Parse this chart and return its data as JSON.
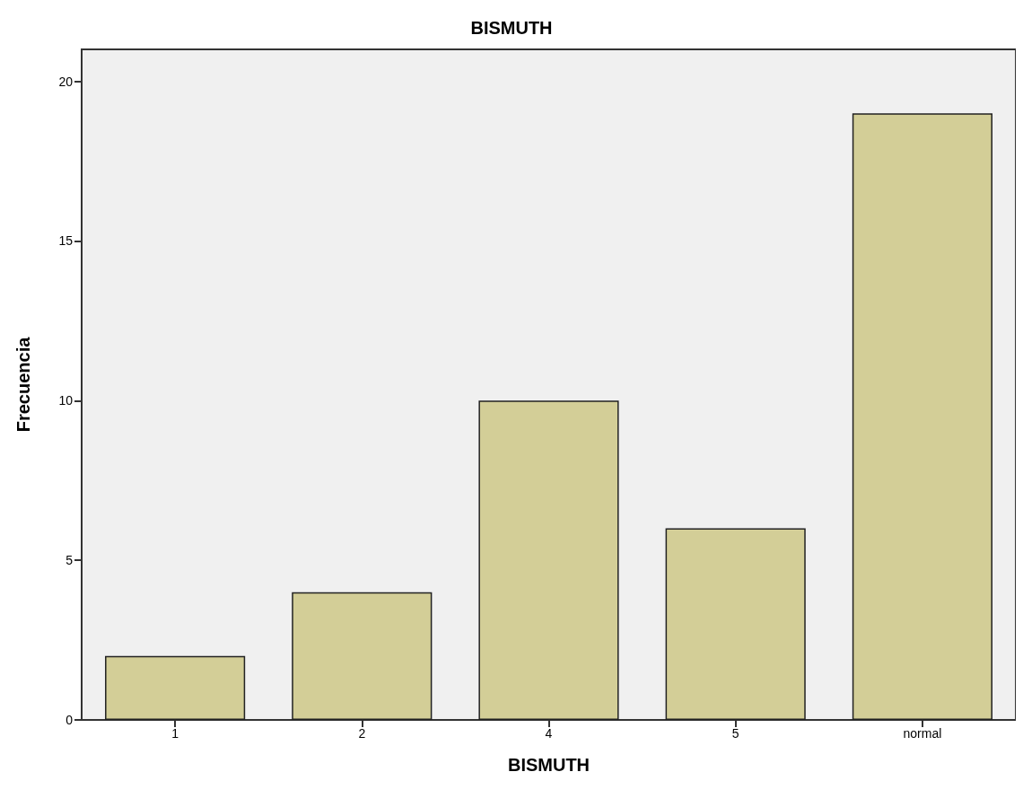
{
  "chart_data": {
    "type": "bar",
    "title": "BISMUTH",
    "xlabel": "BISMUTH",
    "ylabel": "Frecuencia",
    "categories": [
      "1",
      "2",
      "4",
      "5",
      "normal"
    ],
    "values": [
      2,
      4,
      10,
      6,
      19
    ],
    "color": "#d3ce97",
    "ylim": [
      0,
      21
    ],
    "yticks": [
      0,
      5,
      10,
      15,
      20
    ],
    "grid": false
  }
}
